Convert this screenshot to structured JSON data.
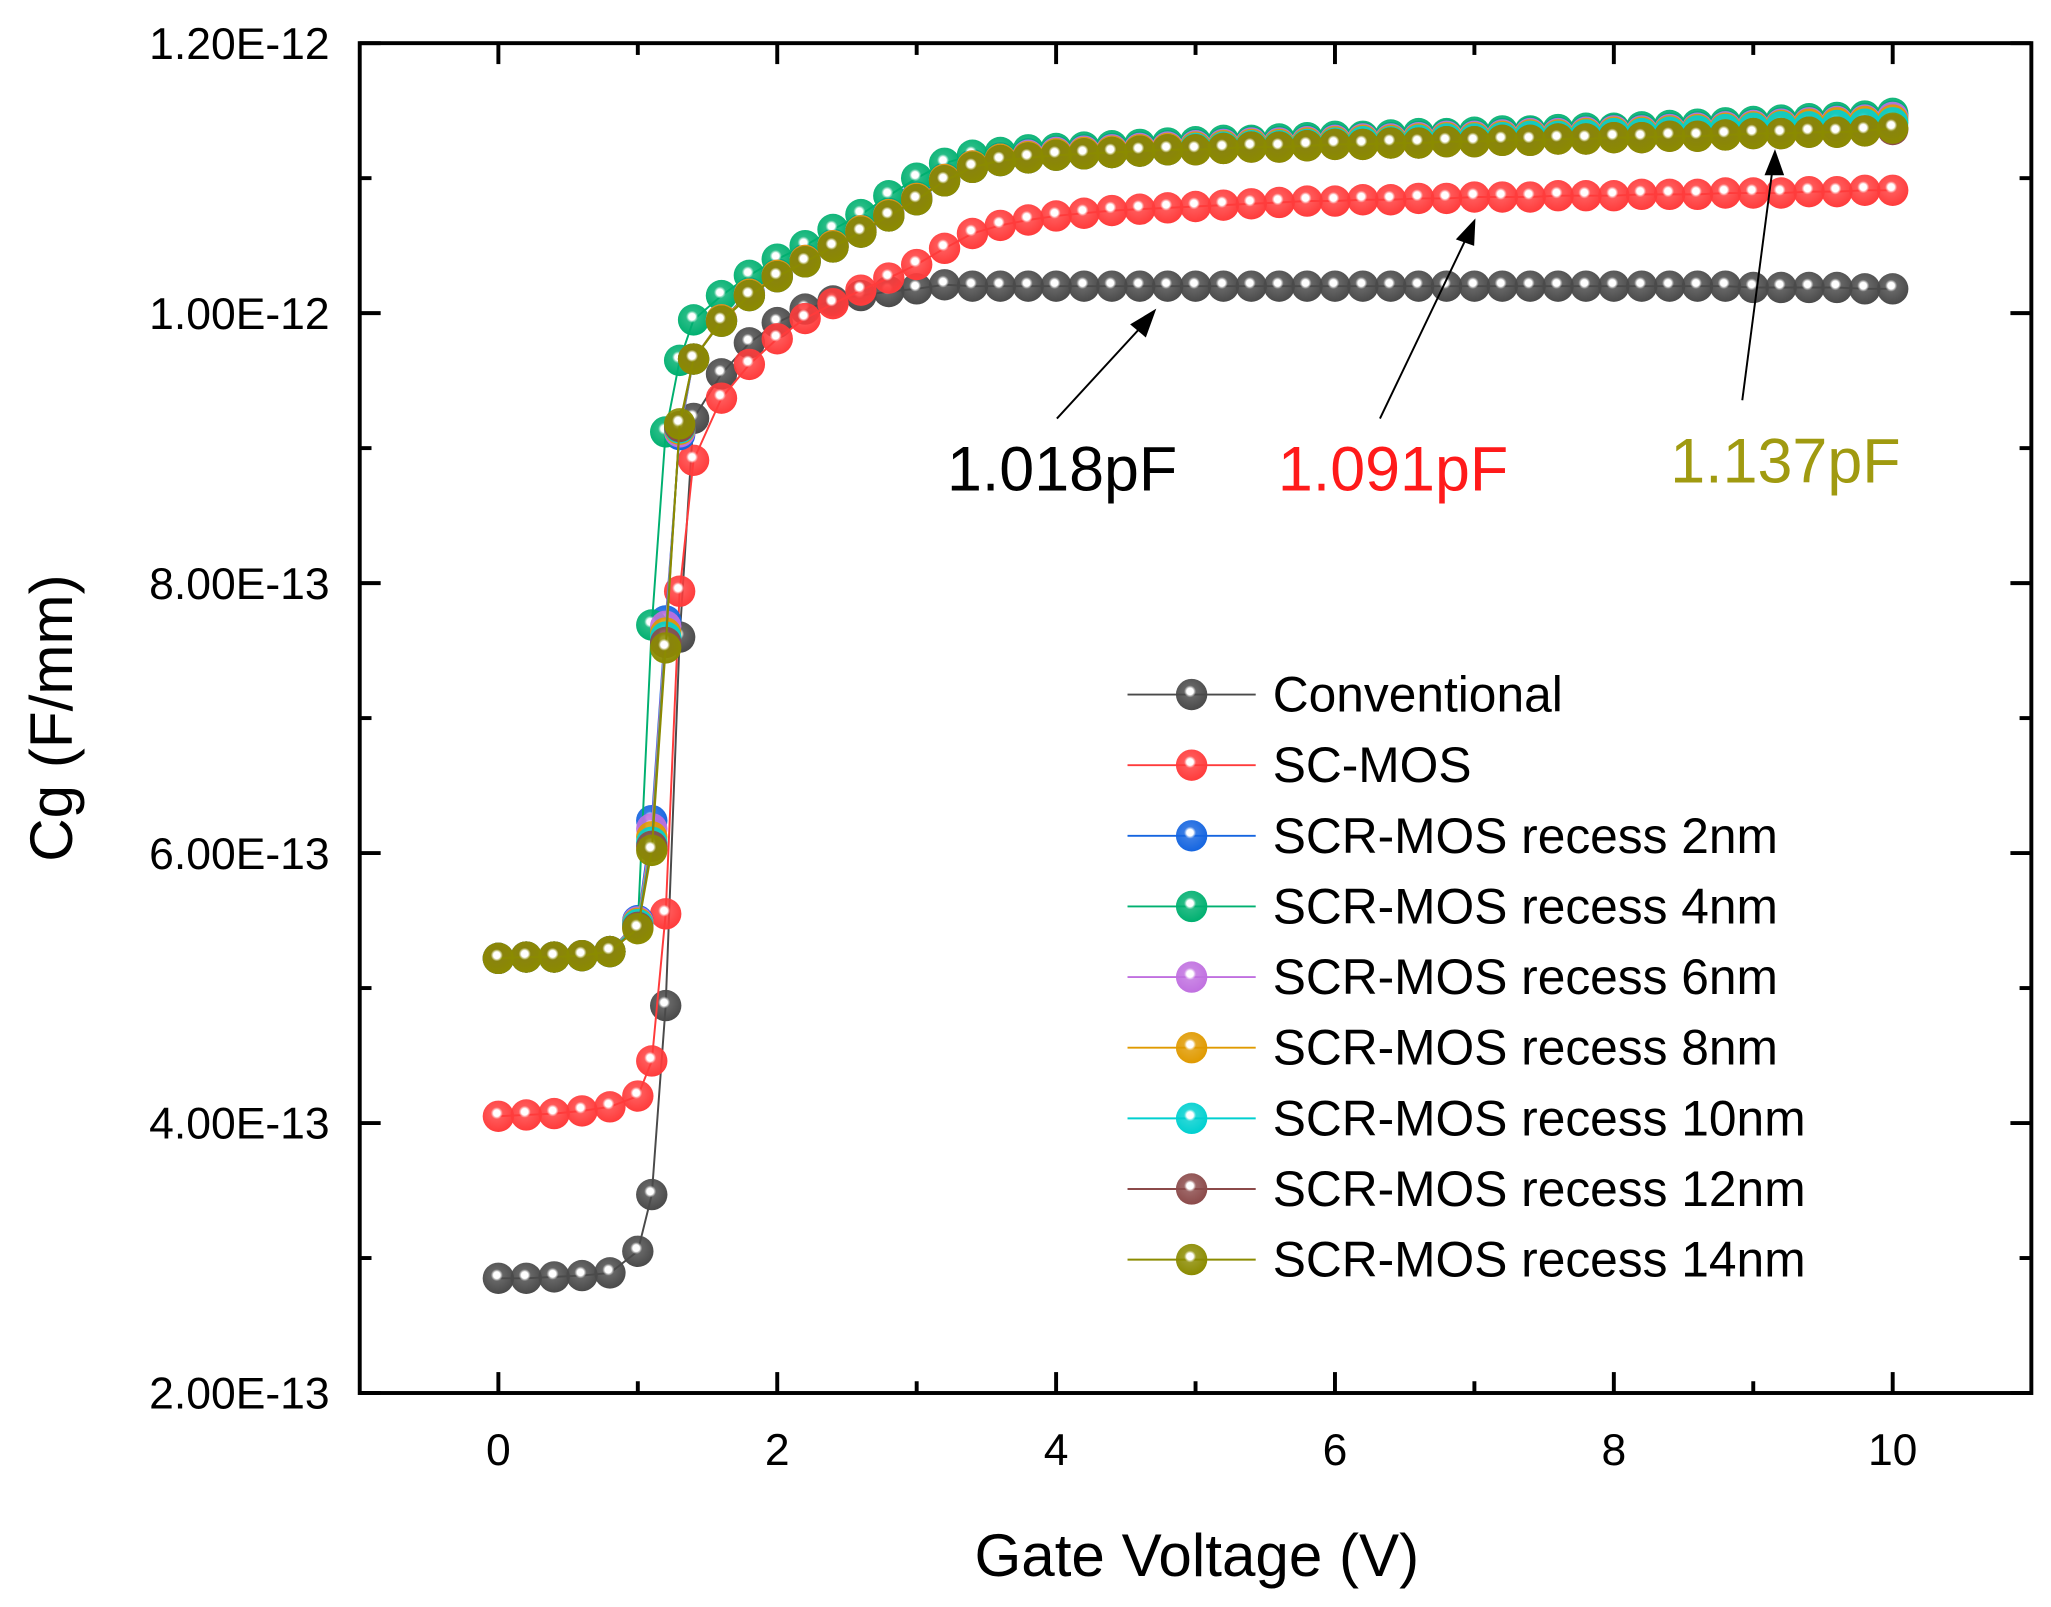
{
  "chart_data": {
    "type": "line",
    "title": "",
    "xlabel": "Gate Voltage (V)",
    "ylabel": "Cg (F/mm)",
    "y_unit_note": "values in units of 1E-13 F/mm",
    "xlim": [
      -1,
      11
    ],
    "ylim": [
      2,
      12
    ],
    "x_ticks": [
      0,
      2,
      4,
      6,
      8,
      10
    ],
    "x_tick_labels": [
      "0",
      "2",
      "4",
      "6",
      "8",
      "10"
    ],
    "y_ticks": [
      2,
      4,
      6,
      8,
      10,
      12
    ],
    "y_tick_labels": [
      "2.00E-13",
      "4.00E-13",
      "6.00E-13",
      "8.00E-13",
      "1.00E-12",
      "1.20E-12"
    ],
    "legend_position": "bottom-right",
    "grid": false,
    "x": [
      0,
      0.2,
      0.4,
      0.6,
      0.8,
      1.0,
      1.1,
      1.2,
      1.3,
      1.4,
      1.6,
      1.8,
      2.0,
      2.2,
      2.4,
      2.6,
      2.8,
      3.0,
      3.2,
      3.4,
      3.6,
      3.8,
      4.0,
      4.2,
      4.4,
      4.6,
      4.8,
      5.0,
      5.2,
      5.4,
      5.6,
      5.8,
      6.0,
      6.2,
      6.4,
      6.6,
      6.8,
      7.0,
      7.2,
      7.4,
      7.6,
      7.8,
      8.0,
      8.2,
      8.4,
      8.6,
      8.8,
      9.0,
      9.2,
      9.4,
      9.6,
      9.8,
      10.0
    ],
    "series": [
      {
        "name": "Conventional",
        "color": "#4a4a4a",
        "values": [
          2.85,
          2.85,
          2.86,
          2.87,
          2.89,
          3.05,
          3.47,
          4.87,
          7.6,
          9.22,
          9.55,
          9.78,
          9.93,
          10.03,
          10.09,
          10.13,
          10.16,
          10.18,
          10.21,
          10.2,
          10.2,
          10.2,
          10.2,
          10.2,
          10.2,
          10.2,
          10.2,
          10.2,
          10.2,
          10.2,
          10.2,
          10.2,
          10.2,
          10.2,
          10.2,
          10.2,
          10.2,
          10.2,
          10.2,
          10.2,
          10.2,
          10.2,
          10.2,
          10.2,
          10.2,
          10.2,
          10.2,
          10.19,
          10.19,
          10.19,
          10.19,
          10.18,
          10.18
        ]
      },
      {
        "name": "SC-MOS",
        "color": "#ff3b3b",
        "values": [
          4.05,
          4.06,
          4.07,
          4.09,
          4.12,
          4.2,
          4.46,
          5.55,
          7.94,
          8.91,
          9.37,
          9.62,
          9.81,
          9.96,
          10.07,
          10.17,
          10.26,
          10.36,
          10.48,
          10.59,
          10.65,
          10.69,
          10.72,
          10.74,
          10.76,
          10.77,
          10.78,
          10.79,
          10.8,
          10.81,
          10.82,
          10.83,
          10.83,
          10.84,
          10.84,
          10.85,
          10.85,
          10.86,
          10.86,
          10.86,
          10.87,
          10.87,
          10.87,
          10.88,
          10.88,
          10.88,
          10.89,
          10.89,
          10.89,
          10.9,
          10.9,
          10.91,
          10.91
        ]
      },
      {
        "name": "SCR-MOS recess 2nm",
        "color": "#1565e0",
        "values": [
          5.22,
          5.23,
          5.23,
          5.24,
          5.27,
          5.5,
          6.24,
          7.72,
          9.1,
          9.66,
          9.95,
          10.15,
          10.29,
          10.4,
          10.51,
          10.62,
          10.74,
          10.86,
          11.0,
          11.1,
          11.15,
          11.18,
          11.2,
          11.21,
          11.22,
          11.23,
          11.24,
          11.25,
          11.26,
          11.27,
          11.27,
          11.28,
          11.29,
          11.3,
          11.3,
          11.31,
          11.32,
          11.32,
          11.33,
          11.34,
          11.34,
          11.35,
          11.36,
          11.36,
          11.37,
          11.38,
          11.39,
          11.4,
          11.41,
          11.42,
          11.43,
          11.44,
          11.46
        ]
      },
      {
        "name": "SCR-MOS recess 4nm",
        "color": "#00b070",
        "values": [
          5.22,
          5.23,
          5.23,
          5.24,
          5.27,
          5.47,
          7.69,
          9.12,
          9.65,
          9.95,
          10.13,
          10.28,
          10.4,
          10.5,
          10.62,
          10.73,
          10.87,
          11.0,
          11.11,
          11.17,
          11.19,
          11.21,
          11.22,
          11.23,
          11.24,
          11.25,
          11.26,
          11.27,
          11.28,
          11.28,
          11.29,
          11.3,
          11.31,
          11.31,
          11.32,
          11.33,
          11.33,
          11.34,
          11.35,
          11.35,
          11.36,
          11.37,
          11.37,
          11.38,
          11.39,
          11.4,
          11.41,
          11.42,
          11.43,
          11.44,
          11.45,
          11.46,
          11.48
        ]
      },
      {
        "name": "SCR-MOS recess 6nm",
        "color": "#c070e0",
        "values": [
          5.22,
          5.23,
          5.23,
          5.24,
          5.27,
          5.49,
          6.18,
          7.68,
          9.12,
          9.66,
          9.95,
          10.14,
          10.28,
          10.39,
          10.5,
          10.61,
          10.73,
          10.85,
          10.99,
          11.09,
          11.14,
          11.17,
          11.19,
          11.2,
          11.21,
          11.22,
          11.23,
          11.24,
          11.25,
          11.26,
          11.26,
          11.27,
          11.28,
          11.29,
          11.29,
          11.3,
          11.31,
          11.31,
          11.32,
          11.33,
          11.33,
          11.34,
          11.35,
          11.35,
          11.36,
          11.37,
          11.38,
          11.39,
          11.4,
          11.41,
          11.42,
          11.43,
          11.45
        ]
      },
      {
        "name": "SCR-MOS recess 8nm",
        "color": "#e09a00",
        "values": [
          5.22,
          5.23,
          5.23,
          5.24,
          5.27,
          5.48,
          6.12,
          7.63,
          9.14,
          9.66,
          9.95,
          10.14,
          10.28,
          10.39,
          10.5,
          10.61,
          10.73,
          10.85,
          10.99,
          11.09,
          11.14,
          11.16,
          11.18,
          11.19,
          11.2,
          11.21,
          11.22,
          11.23,
          11.24,
          11.25,
          11.25,
          11.26,
          11.27,
          11.28,
          11.28,
          11.29,
          11.3,
          11.3,
          11.31,
          11.32,
          11.32,
          11.33,
          11.34,
          11.34,
          11.35,
          11.36,
          11.37,
          11.38,
          11.39,
          11.4,
          11.41,
          11.42,
          11.43
        ]
      },
      {
        "name": "SCR-MOS recess 10nm",
        "color": "#00d0d0",
        "values": [
          5.22,
          5.23,
          5.23,
          5.24,
          5.27,
          5.47,
          6.08,
          7.6,
          9.15,
          9.66,
          9.94,
          10.13,
          10.27,
          10.38,
          10.49,
          10.6,
          10.72,
          10.84,
          10.98,
          11.08,
          11.13,
          11.15,
          11.17,
          11.18,
          11.19,
          11.2,
          11.21,
          11.22,
          11.23,
          11.24,
          11.24,
          11.25,
          11.26,
          11.27,
          11.27,
          11.28,
          11.29,
          11.29,
          11.3,
          11.31,
          11.31,
          11.32,
          11.33,
          11.33,
          11.34,
          11.35,
          11.36,
          11.37,
          11.38,
          11.38,
          11.39,
          11.4,
          11.41
        ]
      },
      {
        "name": "SCR-MOS recess 12nm",
        "color": "#8b4a4a",
        "values": [
          5.22,
          5.23,
          5.23,
          5.24,
          5.27,
          5.45,
          6.05,
          7.56,
          9.16,
          9.66,
          9.94,
          10.13,
          10.27,
          10.38,
          10.49,
          10.6,
          10.72,
          10.84,
          10.98,
          11.08,
          11.13,
          11.15,
          11.17,
          11.18,
          11.19,
          11.2,
          11.21,
          11.21,
          11.22,
          11.23,
          11.23,
          11.24,
          11.25,
          11.25,
          11.26,
          11.26,
          11.27,
          11.27,
          11.28,
          11.28,
          11.29,
          11.29,
          11.3,
          11.3,
          11.31,
          11.31,
          11.32,
          11.33,
          11.33,
          11.34,
          11.34,
          11.35,
          11.36
        ]
      },
      {
        "name": "SCR-MOS recess 14nm",
        "color": "#8b8b00",
        "values": [
          5.22,
          5.23,
          5.23,
          5.24,
          5.27,
          5.44,
          6.02,
          7.52,
          9.18,
          9.66,
          9.94,
          10.13,
          10.27,
          10.38,
          10.49,
          10.6,
          10.72,
          10.84,
          10.98,
          11.08,
          11.13,
          11.15,
          11.17,
          11.18,
          11.19,
          11.2,
          11.21,
          11.21,
          11.22,
          11.23,
          11.23,
          11.24,
          11.25,
          11.25,
          11.26,
          11.26,
          11.27,
          11.27,
          11.28,
          11.28,
          11.29,
          11.29,
          11.3,
          11.3,
          11.31,
          11.31,
          11.32,
          11.33,
          11.33,
          11.34,
          11.34,
          11.35,
          11.37
        ]
      }
    ],
    "annotations": [
      {
        "text": "1.018pF",
        "color": "#000000",
        "points_to_x": 4.7,
        "points_to_y": 10.18
      },
      {
        "text": "1.091pF",
        "color": "#ff1a1a",
        "points_to_x": 7.0,
        "points_to_y": 10.85
      },
      {
        "text": "1.137pF",
        "color": "#a09a10",
        "points_to_x": 9.2,
        "points_to_y": 11.33
      }
    ]
  }
}
